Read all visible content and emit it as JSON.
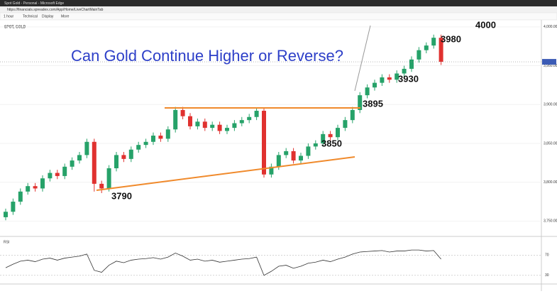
{
  "window": {
    "title": "Spot Gold - Personal - Microsoft Edge",
    "url": "https://financials.spreadex.com/App/Home/LiveChartMainTab",
    "toolbar": [
      "1 hour",
      "Technical",
      "Display",
      "More"
    ],
    "symbol": "SPOT, GOLD"
  },
  "chart_data": {
    "type": "candlestick",
    "title": "Can Gold Continue Higher or Reverse?",
    "annotations": [
      "3790",
      "3850",
      "3895",
      "3930",
      "3980",
      "4000"
    ],
    "up_color": "#26a269",
    "down_color": "#e0312f",
    "candles": [
      [
        3755,
        3766,
        3751,
        3762
      ],
      [
        3762,
        3779,
        3758,
        3775
      ],
      [
        3775,
        3792,
        3771,
        3788
      ],
      [
        3788,
        3799,
        3784,
        3795
      ],
      [
        3795,
        3799,
        3788,
        3792
      ],
      [
        3792,
        3809,
        3788,
        3805
      ],
      [
        3805,
        3816,
        3801,
        3812
      ],
      [
        3812,
        3816,
        3804,
        3808
      ],
      [
        3808,
        3824,
        3804,
        3820
      ],
      [
        3820,
        3832,
        3816,
        3828
      ],
      [
        3828,
        3839,
        3824,
        3835
      ],
      [
        3835,
        3856,
        3831,
        3852
      ],
      [
        3852,
        3856,
        3788,
        3798
      ],
      [
        3798,
        3802,
        3786,
        3792
      ],
      [
        3792,
        3822,
        3788,
        3818
      ],
      [
        3818,
        3839,
        3814,
        3835
      ],
      [
        3835,
        3839,
        3826,
        3830
      ],
      [
        3830,
        3846,
        3826,
        3842
      ],
      [
        3842,
        3852,
        3838,
        3848
      ],
      [
        3848,
        3856,
        3844,
        3852
      ],
      [
        3852,
        3864,
        3848,
        3860
      ],
      [
        3860,
        3864,
        3852,
        3856
      ],
      [
        3856,
        3872,
        3852,
        3868
      ],
      [
        3868,
        3897,
        3864,
        3893
      ],
      [
        3893,
        3897,
        3881,
        3885
      ],
      [
        3885,
        3889,
        3868,
        3872
      ],
      [
        3872,
        3882,
        3868,
        3878
      ],
      [
        3878,
        3882,
        3866,
        3870
      ],
      [
        3870,
        3878,
        3866,
        3874
      ],
      [
        3874,
        3878,
        3862,
        3866
      ],
      [
        3866,
        3874,
        3862,
        3870
      ],
      [
        3870,
        3880,
        3866,
        3876
      ],
      [
        3876,
        3884,
        3872,
        3880
      ],
      [
        3880,
        3888,
        3876,
        3884
      ],
      [
        3884,
        3896,
        3880,
        3892
      ],
      [
        3892,
        3896,
        3806,
        3810
      ],
      [
        3810,
        3824,
        3806,
        3820
      ],
      [
        3820,
        3839,
        3816,
        3835
      ],
      [
        3835,
        3844,
        3831,
        3840
      ],
      [
        3840,
        3844,
        3824,
        3828
      ],
      [
        3828,
        3838,
        3824,
        3834
      ],
      [
        3834,
        3850,
        3830,
        3846
      ],
      [
        3846,
        3854,
        3842,
        3850
      ],
      [
        3850,
        3866,
        3846,
        3862
      ],
      [
        3862,
        3866,
        3854,
        3858
      ],
      [
        3858,
        3874,
        3854,
        3870
      ],
      [
        3870,
        3884,
        3866,
        3880
      ],
      [
        3880,
        3897,
        3876,
        3893
      ],
      [
        3893,
        3916,
        3889,
        3912
      ],
      [
        3912,
        3926,
        3908,
        3922
      ],
      [
        3922,
        3932,
        3918,
        3928
      ],
      [
        3928,
        3939,
        3924,
        3935
      ],
      [
        3935,
        3939,
        3928,
        3932
      ],
      [
        3932,
        3944,
        3928,
        3940
      ],
      [
        3940,
        3950,
        3936,
        3946
      ],
      [
        3946,
        3962,
        3942,
        3958
      ],
      [
        3958,
        3974,
        3954,
        3970
      ],
      [
        3970,
        3980,
        3966,
        3976
      ],
      [
        3976,
        3990,
        3972,
        3986
      ],
      [
        3986,
        3990,
        3951,
        3955
      ]
    ],
    "ylim": [
      3733,
      4009
    ],
    "yticks": [
      {
        "value": 4000,
        "label": "4,000.00"
      },
      {
        "value": 3950,
        "label": "3,950.00"
      },
      {
        "value": 3900,
        "label": "3,900.00"
      },
      {
        "value": 3850,
        "label": "3,850.00"
      },
      {
        "value": 3800,
        "label": "3,800.00"
      },
      {
        "value": 3750,
        "label": "3,750.00"
      }
    ],
    "rsi": {
      "name": "RSI",
      "color": "#333333",
      "ylim": [
        20,
        90
      ],
      "yticks": [
        30,
        70
      ],
      "values": [
        45,
        52,
        58,
        60,
        57,
        62,
        64,
        60,
        64,
        66,
        68,
        72,
        40,
        36,
        50,
        58,
        55,
        60,
        62,
        63,
        65,
        62,
        66,
        74,
        68,
        60,
        62,
        58,
        60,
        56,
        58,
        60,
        62,
        63,
        66,
        30,
        38,
        48,
        50,
        44,
        48,
        54,
        56,
        60,
        57,
        62,
        66,
        72,
        76,
        77,
        78,
        79,
        76,
        78,
        78,
        80,
        80,
        78,
        79,
        62
      ]
    }
  }
}
